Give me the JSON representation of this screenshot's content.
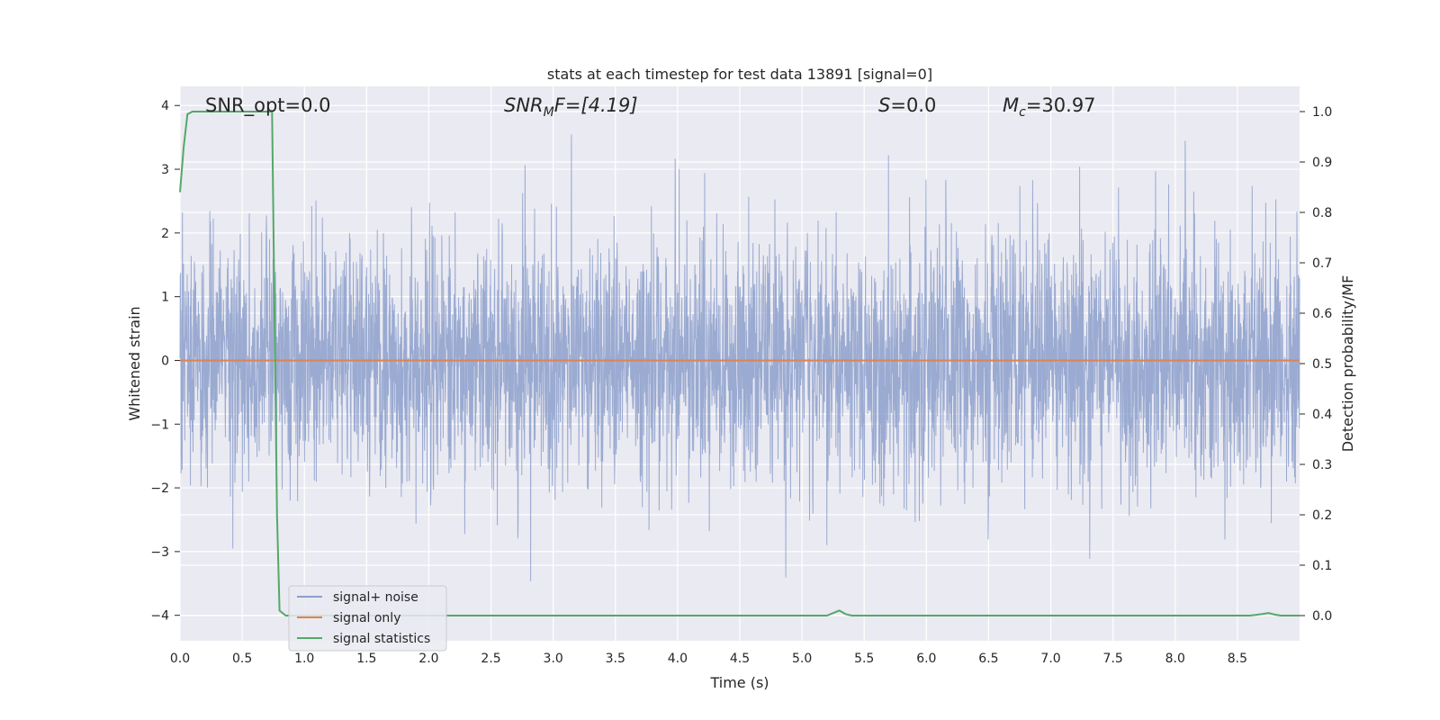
{
  "chart_data": {
    "type": "line",
    "title": "stats at each timestep for test data 13891 [signal=0]",
    "xlabel": "Time (s)",
    "ylabel": "Whitened strain",
    "y2label": "Detection probability/MF",
    "xlim": [
      0,
      9.0
    ],
    "ylim": [
      -4.4,
      4.3
    ],
    "y2lim": [
      -0.05,
      1.05
    ],
    "xticks": [
      0.0,
      0.5,
      1.0,
      1.5,
      2.0,
      2.5,
      3.0,
      3.5,
      4.0,
      4.5,
      5.0,
      5.5,
      6.0,
      6.5,
      7.0,
      7.5,
      8.0,
      8.5
    ],
    "xtick_labels": [
      "0.0",
      "0.5",
      "1.0",
      "1.5",
      "2.0",
      "2.5",
      "3.0",
      "3.5",
      "4.0",
      "4.5",
      "5.0",
      "5.5",
      "6.0",
      "6.5",
      "7.0",
      "7.5",
      "8.0",
      "8.5"
    ],
    "yticks": [
      -4,
      -3,
      -2,
      -1,
      0,
      1,
      2,
      3,
      4
    ],
    "ytick_labels": [
      "−4",
      "−3",
      "−2",
      "−1",
      "0",
      "1",
      "2",
      "3",
      "4"
    ],
    "y2ticks": [
      0.0,
      0.1,
      0.2,
      0.3,
      0.4,
      0.5,
      0.6,
      0.7,
      0.8,
      0.9,
      1.0
    ],
    "y2tick_labels": [
      "0.0",
      "0.1",
      "0.2",
      "0.3",
      "0.4",
      "0.5",
      "0.6",
      "0.7",
      "0.8",
      "0.9",
      "1.0"
    ],
    "grid": true,
    "legend_position": "lower-left",
    "annotations": {
      "snr_opt": "SNR_opt=0.0",
      "snr_mf_main": "SNR",
      "snr_mf_sub": "M",
      "snr_mf_rest": "F=[4.19]",
      "s_main": "S",
      "s_rest": "=0.0",
      "mc_main": "M",
      "mc_sub": "c",
      "mc_rest": "=30.97"
    },
    "series": [
      {
        "name": "signal+ noise",
        "color": "#8c9fcb",
        "kind": "noise",
        "approx_std": 0.9,
        "approx_peak_range": [
          -3.8,
          3.9
        ],
        "samples_per_second": 2048
      },
      {
        "name": "signal only",
        "color": "#dd8452",
        "kind": "line",
        "x": [
          0.0,
          9.0
        ],
        "y": [
          0.0,
          0.0
        ]
      },
      {
        "name": "signal statistics",
        "color": "#55a868",
        "axis": "right",
        "kind": "line",
        "x": [
          0.0,
          0.03,
          0.06,
          0.1,
          0.2,
          0.4,
          0.6,
          0.72,
          0.74,
          0.76,
          0.78,
          0.8,
          0.85,
          1.0,
          2.0,
          3.0,
          4.0,
          5.0,
          5.2,
          5.25,
          5.3,
          5.35,
          5.4,
          6.0,
          7.0,
          8.0,
          8.6,
          8.7,
          8.75,
          8.8,
          8.85,
          9.0
        ],
        "y": [
          0.84,
          0.93,
          0.995,
          1.0,
          1.0,
          1.0,
          1.0,
          1.0,
          1.0,
          0.6,
          0.2,
          0.01,
          0.0,
          0.0,
          0.0,
          0.0,
          0.0,
          0.0,
          0.0,
          0.005,
          0.01,
          0.003,
          0.0,
          0.0,
          0.0,
          0.0,
          0.0,
          0.003,
          0.005,
          0.002,
          0.0,
          0.0
        ]
      }
    ]
  }
}
